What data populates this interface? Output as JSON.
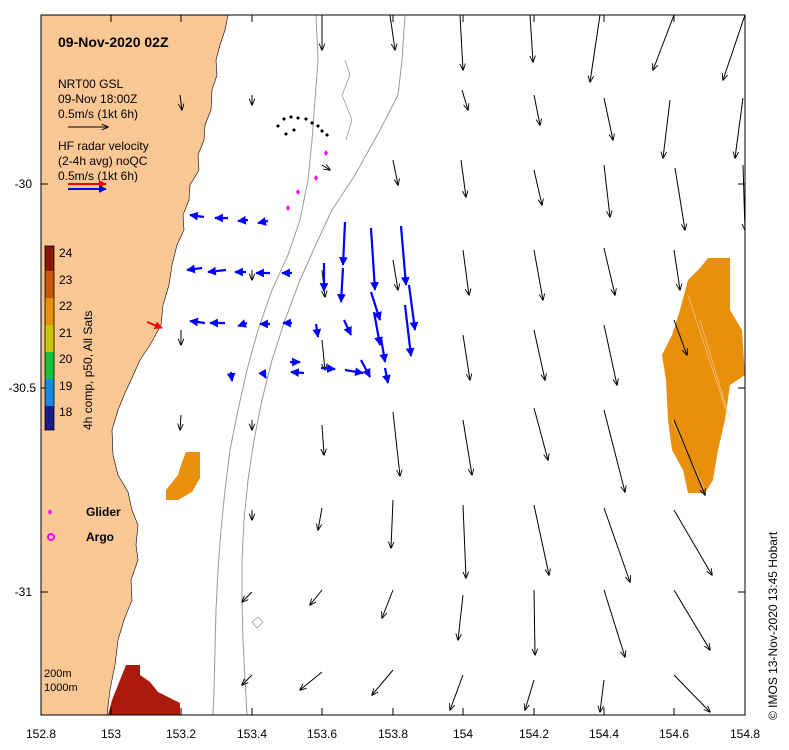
{
  "map": {
    "title": "09-Nov-2020 02Z",
    "credit": "© IMOS 13-Nov-2020 13:45 Hobart",
    "x_ticks": [
      "152.8",
      "153",
      "153.2",
      "153.4",
      "153.6",
      "153.8",
      "154",
      "154.2",
      "154.4",
      "154.6",
      "154.8"
    ],
    "y_ticks": [
      "-30",
      "-30.5",
      "-31"
    ],
    "colors": {
      "land": "#fac795",
      "radar": "#0000ff",
      "model": "#000000",
      "glider": "#ff00ff",
      "sst_warm": "#e8900c",
      "sst_hot": "#aa1a0a",
      "isobath": "#999999"
    }
  },
  "legend": {
    "model_title": "NRT00 GSL",
    "model_time": "09-Nov 18:00Z",
    "model_scale": "0.5m/s (1kt 6h)",
    "radar_title": "HF radar velocity",
    "radar_avg": "(2-4h avg) noQC",
    "radar_scale": "0.5m/s (1kt 6h)",
    "glider": "Glider",
    "argo": "Argo",
    "depth_200": "200m",
    "depth_1000": "1000m"
  },
  "colorbar": {
    "label": "4h comp, p50, All Sats",
    "ticks": [
      "24",
      "23",
      "22",
      "21",
      "20",
      "19",
      "18"
    ]
  }
}
